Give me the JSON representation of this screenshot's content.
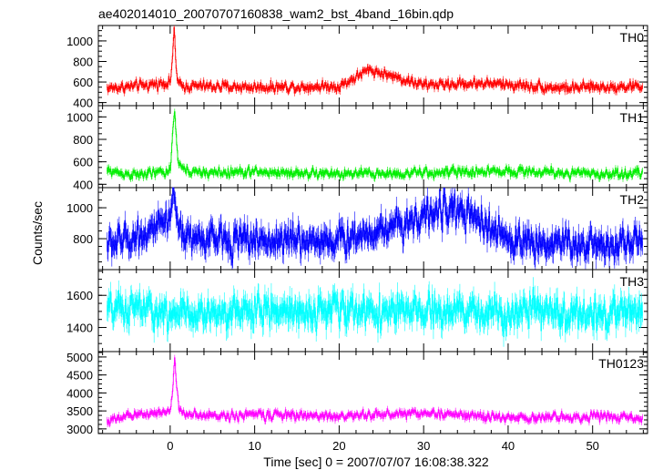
{
  "chart_data": {
    "type": "line",
    "title": "ae402014010_20070707160838_wam2_bst_4band_16bin.qdp",
    "xlabel": "Time [sec] 0 = 2007/07/07 16:08:38.322",
    "ylabel": "Counts/sec",
    "xlim": [
      -8.5,
      56.5
    ],
    "x_ticks": [
      0,
      10,
      20,
      30,
      40,
      50
    ],
    "grid": false,
    "panels": [
      {
        "name": "TH0",
        "color": "#ff0000",
        "ylim": [
          370,
          1150
        ],
        "y_ticks": [
          400,
          600,
          800,
          1000
        ],
        "baseline": 550,
        "noise": 35,
        "x": [
          -7.5,
          -4,
          0,
          0.3,
          0.45,
          0.6,
          0.8,
          1.2,
          3,
          10,
          20,
          23.5,
          30,
          37,
          47,
          50,
          55.5
        ],
        "y": [
          540,
          560,
          600,
          900,
          1150,
          850,
          620,
          560,
          560,
          550,
          560,
          720,
          570,
          590,
          540,
          550,
          560
        ]
      },
      {
        "name": "TH1",
        "color": "#00ee00",
        "ylim": [
          370,
          1100
        ],
        "y_ticks": [
          400,
          600,
          800,
          1000
        ],
        "baseline": 500,
        "noise": 30,
        "x": [
          -7.5,
          -4,
          0,
          0.3,
          0.5,
          0.7,
          0.9,
          1.3,
          3,
          10,
          20,
          30,
          40,
          50,
          55.5
        ],
        "y": [
          520,
          480,
          520,
          900,
          1050,
          820,
          600,
          540,
          500,
          510,
          490,
          500,
          520,
          490,
          500
        ]
      },
      {
        "name": "TH2",
        "color": "#0000ff",
        "ylim": [
          600,
          1130
        ],
        "y_ticks": [
          800,
          1000
        ],
        "baseline": 790,
        "noise": 70,
        "x": [
          -7.5,
          -4,
          0,
          0.3,
          0.6,
          1,
          3,
          10,
          20,
          33.5,
          40,
          50,
          55.5
        ],
        "y": [
          760,
          820,
          900,
          1130,
          980,
          860,
          800,
          790,
          790,
          1000,
          790,
          760,
          780
        ]
      },
      {
        "name": "TH3",
        "color": "#00ffff",
        "ylim": [
          1250,
          1760
        ],
        "y_ticks": [
          1400,
          1600
        ],
        "baseline": 1500,
        "noise": 70,
        "x": [
          -7.5,
          -4,
          0,
          10,
          20,
          30,
          40,
          50,
          55.5
        ],
        "y": [
          1500,
          1520,
          1480,
          1500,
          1510,
          1490,
          1500,
          1480,
          1500
        ]
      },
      {
        "name": "TH0123",
        "color": "#ff00ff",
        "ylim": [
          2870,
          5150
        ],
        "y_ticks": [
          3000,
          3500,
          4000,
          4500,
          5000
        ],
        "baseline": 3350,
        "noise": 90,
        "x": [
          -7.5,
          -4,
          0,
          0.3,
          0.5,
          0.7,
          1,
          1.5,
          3,
          10,
          20,
          30,
          40,
          50,
          55.5
        ],
        "y": [
          3200,
          3400,
          3500,
          4200,
          5000,
          4300,
          3600,
          3450,
          3350,
          3400,
          3350,
          3450,
          3300,
          3350,
          3300
        ]
      }
    ]
  }
}
